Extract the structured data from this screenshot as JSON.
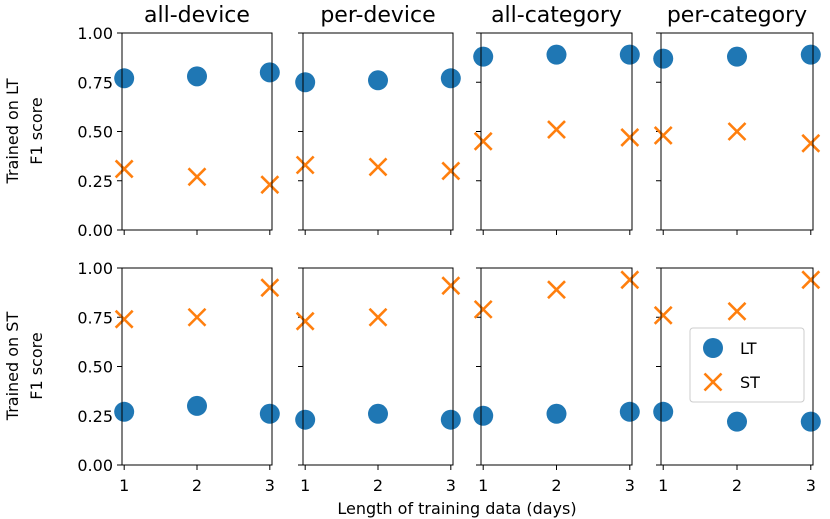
{
  "chart_data": {
    "type": "scatter",
    "xlabel": "Length of training data (days)",
    "columns": [
      "all-device",
      "per-device",
      "all-category",
      "per-category"
    ],
    "rows": [
      {
        "ylabel": [
          "Trained on LT",
          "F1 score"
        ]
      },
      {
        "ylabel": [
          "Trained on ST",
          "F1 score"
        ]
      }
    ],
    "x_ticks": [
      "1",
      "2",
      "3"
    ],
    "x_values": [
      1,
      2,
      3
    ],
    "y_ticks": [
      "0.00",
      "0.25",
      "0.50",
      "0.75",
      "1.00"
    ],
    "y_tick_values": [
      0,
      0.25,
      0.5,
      0.75,
      1.0
    ],
    "xlim": [
      0.97,
      3.03
    ],
    "ylim": [
      0,
      1.0
    ],
    "grid": false,
    "legend": {
      "entries": [
        "LT",
        "ST"
      ],
      "placement": "bottom-right panel (row 2, per-category), center-right"
    },
    "colors": {
      "LT": "#1f77b4",
      "ST": "#ff7f0e"
    },
    "markers": {
      "LT": "circle",
      "ST": "x"
    },
    "panels": [
      {
        "row": 0,
        "col": 0,
        "series": [
          {
            "name": "LT",
            "values": [
              0.77,
              0.78,
              0.8
            ]
          },
          {
            "name": "ST",
            "values": [
              0.31,
              0.27,
              0.23
            ]
          }
        ]
      },
      {
        "row": 0,
        "col": 1,
        "series": [
          {
            "name": "LT",
            "values": [
              0.75,
              0.76,
              0.77
            ]
          },
          {
            "name": "ST",
            "values": [
              0.33,
              0.32,
              0.3
            ]
          }
        ]
      },
      {
        "row": 0,
        "col": 2,
        "series": [
          {
            "name": "LT",
            "values": [
              0.88,
              0.89,
              0.89
            ]
          },
          {
            "name": "ST",
            "values": [
              0.45,
              0.51,
              0.47
            ]
          }
        ]
      },
      {
        "row": 0,
        "col": 3,
        "series": [
          {
            "name": "LT",
            "values": [
              0.87,
              0.88,
              0.89
            ]
          },
          {
            "name": "ST",
            "values": [
              0.48,
              0.5,
              0.44
            ]
          }
        ]
      },
      {
        "row": 1,
        "col": 0,
        "series": [
          {
            "name": "LT",
            "values": [
              0.27,
              0.3,
              0.26
            ]
          },
          {
            "name": "ST",
            "values": [
              0.74,
              0.75,
              0.9
            ]
          }
        ]
      },
      {
        "row": 1,
        "col": 1,
        "series": [
          {
            "name": "LT",
            "values": [
              0.23,
              0.26,
              0.23
            ]
          },
          {
            "name": "ST",
            "values": [
              0.73,
              0.75,
              0.91
            ]
          }
        ]
      },
      {
        "row": 1,
        "col": 2,
        "series": [
          {
            "name": "LT",
            "values": [
              0.25,
              0.26,
              0.27
            ]
          },
          {
            "name": "ST",
            "values": [
              0.79,
              0.89,
              0.94
            ]
          }
        ]
      },
      {
        "row": 1,
        "col": 3,
        "series": [
          {
            "name": "LT",
            "values": [
              0.27,
              0.22,
              0.22
            ]
          },
          {
            "name": "ST",
            "values": [
              0.76,
              0.78,
              0.94
            ]
          }
        ]
      }
    ]
  }
}
